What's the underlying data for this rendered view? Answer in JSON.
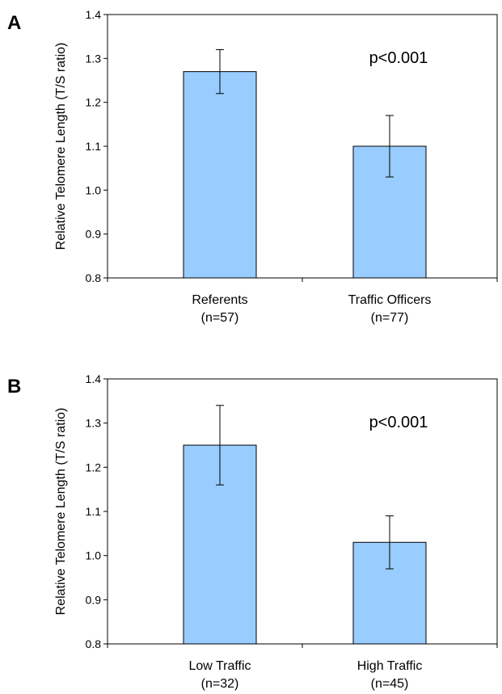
{
  "chart_data": [
    {
      "type": "bar",
      "panel": "A",
      "categories": [
        "Referents",
        "Traffic Officers"
      ],
      "category_sublabels": [
        "(n=57)",
        "(n=77)"
      ],
      "values": [
        1.27,
        1.1
      ],
      "error_bars": [
        0.05,
        0.07
      ],
      "ylabel": "Relative Telomere Length (T/S ratio)",
      "xlabel": "",
      "ylim": [
        0.8,
        1.4
      ],
      "yticks": [
        "0.8",
        "0.9",
        "1.0",
        "1.1",
        "1.2",
        "1.3",
        "1.4"
      ],
      "annotation": "p<0.001",
      "bar_color": "#99ccff",
      "grid": false,
      "legend": "none"
    },
    {
      "type": "bar",
      "panel": "B",
      "categories": [
        "Low Traffic",
        "High Traffic"
      ],
      "category_sublabels": [
        "(n=32)",
        "(n=45)"
      ],
      "values": [
        1.25,
        1.03
      ],
      "error_bars": [
        0.09,
        0.06
      ],
      "ylabel": "Relative Telomere Length (T/S ratio)",
      "xlabel": "",
      "ylim": [
        0.8,
        1.4
      ],
      "yticks": [
        "0.8",
        "0.9",
        "1.0",
        "1.1",
        "1.2",
        "1.3",
        "1.4"
      ],
      "annotation": "p<0.001",
      "bar_color": "#99ccff",
      "grid": false,
      "legend": "none"
    }
  ]
}
